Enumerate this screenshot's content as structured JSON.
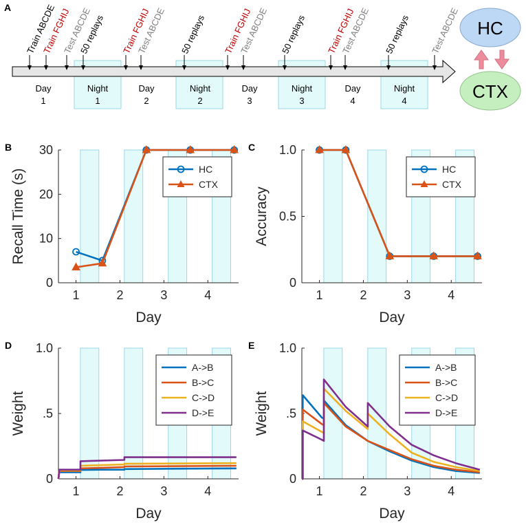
{
  "panel_a": {
    "letter": "A",
    "events": [
      {
        "text": "Train ABCDE",
        "kind": "train"
      },
      {
        "text": "Train FGHIJ",
        "kind": "new"
      },
      {
        "text": "Test ABCDE",
        "kind": "test"
      },
      {
        "text": "50 replays",
        "kind": "replay"
      },
      {
        "text": "Train FGHIJ",
        "kind": "new"
      },
      {
        "text": "Test ABCDE",
        "kind": "test"
      },
      {
        "text": "50 replays",
        "kind": "replay"
      },
      {
        "text": "Train FGHIJ",
        "kind": "new"
      },
      {
        "text": "Test ABCDE",
        "kind": "test"
      },
      {
        "text": "50 replays",
        "kind": "replay"
      },
      {
        "text": "Train FGHIJ",
        "kind": "new"
      },
      {
        "text": "Test ABCDE",
        "kind": "test"
      },
      {
        "text": "50 replays",
        "kind": "replay"
      },
      {
        "text": "Test ABCDE",
        "kind": "test"
      }
    ],
    "periods": [
      {
        "label": "Day",
        "num": "1",
        "night": false
      },
      {
        "label": "Night",
        "num": "1",
        "night": true
      },
      {
        "label": "Day",
        "num": "2",
        "night": false
      },
      {
        "label": "Night",
        "num": "2",
        "night": true
      },
      {
        "label": "Day",
        "num": "3",
        "night": false
      },
      {
        "label": "Night",
        "num": "3",
        "night": true
      },
      {
        "label": "Day",
        "num": "4",
        "night": false
      },
      {
        "label": "Night",
        "num": "4",
        "night": true
      }
    ],
    "hc_label": "HC",
    "ctx_label": "CTX"
  },
  "colors": {
    "blue": "#0072bd",
    "orange": "#d95319",
    "yellow": "#edb120",
    "purple": "#7e2f8e",
    "red_text": "#c00000",
    "gray_text": "#808080",
    "night_fill": "#e3fafa",
    "night_stroke": "#9ad8e8",
    "hc_fill": "#bcd8f5",
    "ctx_fill": "#c6efc0",
    "arrow_pink": "#ec8c9c"
  },
  "chart_data": [
    {
      "id": "B",
      "letter": "B",
      "type": "line",
      "xlabel": "Day",
      "ylabel": "Recall Time (s)",
      "xlim": [
        0.6,
        4.7
      ],
      "ylim": [
        0,
        30
      ],
      "xticks": [
        1,
        2,
        3,
        4
      ],
      "yticks": [
        0,
        10,
        20,
        30
      ],
      "ytick_labels": [
        "0",
        "10",
        "20",
        "30"
      ],
      "legend": "top-right",
      "series": [
        {
          "name": "HC",
          "marker": "circle",
          "x": [
            1,
            1.6,
            2.6,
            3.6,
            4.6
          ],
          "y": [
            7,
            5,
            30,
            30,
            30
          ]
        },
        {
          "name": "CTX",
          "marker": "triangle",
          "x": [
            1,
            1.6,
            2.6,
            3.6,
            4.6
          ],
          "y": [
            3.5,
            4.4,
            30,
            30,
            30
          ]
        }
      ]
    },
    {
      "id": "C",
      "letter": "C",
      "type": "line",
      "xlabel": "Day",
      "ylabel": "Accuracy",
      "xlim": [
        0.6,
        4.7
      ],
      "ylim": [
        0,
        1
      ],
      "xticks": [
        1,
        2,
        3,
        4
      ],
      "yticks": [
        0,
        0.5,
        1
      ],
      "ytick_labels": [
        "0",
        "0.5",
        "1.0"
      ],
      "legend": "top-right",
      "series": [
        {
          "name": "HC",
          "marker": "circle",
          "x": [
            1,
            1.6,
            2.6,
            3.6,
            4.6
          ],
          "y": [
            1,
            1,
            0.2,
            0.2,
            0.2
          ]
        },
        {
          "name": "CTX",
          "marker": "triangle",
          "x": [
            1,
            1.6,
            2.6,
            3.6,
            4.6
          ],
          "y": [
            1,
            1,
            0.2,
            0.2,
            0.2
          ]
        }
      ]
    },
    {
      "id": "D",
      "letter": "D",
      "type": "line",
      "xlabel": "Day",
      "ylabel": "Weight",
      "xlim": [
        0.6,
        4.7
      ],
      "ylim": [
        0,
        1
      ],
      "xticks": [
        1,
        2,
        3,
        4
      ],
      "yticks": [
        0,
        0.5,
        1
      ],
      "ytick_labels": [
        "0",
        ".5",
        "1.0"
      ],
      "legend": "top-right",
      "series": [
        {
          "name": "A->B",
          "x": [
            0.6,
            0.62,
            1.1,
            1.1,
            1.6,
            2.1,
            2.1,
            4.65
          ],
          "y": [
            0,
            0.05,
            0.05,
            0.068,
            0.07,
            0.07,
            0.075,
            0.08
          ]
        },
        {
          "name": "B->C",
          "x": [
            0.6,
            0.62,
            1.1,
            1.1,
            1.6,
            2.1,
            2.1,
            4.65
          ],
          "y": [
            0,
            0.06,
            0.06,
            0.08,
            0.085,
            0.09,
            0.095,
            0.1
          ]
        },
        {
          "name": "C->D",
          "x": [
            0.6,
            0.62,
            1.1,
            1.1,
            1.6,
            2.1,
            2.1,
            4.65
          ],
          "y": [
            0,
            0.065,
            0.065,
            0.1,
            0.105,
            0.11,
            0.115,
            0.12
          ]
        },
        {
          "name": "D->E",
          "x": [
            0.6,
            0.62,
            1.1,
            1.1,
            1.6,
            2.1,
            2.1,
            4.65
          ],
          "y": [
            0,
            0.07,
            0.07,
            0.135,
            0.14,
            0.145,
            0.165,
            0.165
          ]
        }
      ]
    },
    {
      "id": "E",
      "letter": "E",
      "type": "line",
      "xlabel": "Day",
      "ylabel": "Weight",
      "xlim": [
        0.6,
        4.7
      ],
      "ylim": [
        0,
        1
      ],
      "xticks": [
        1,
        2,
        3,
        4
      ],
      "yticks": [
        0,
        0.5,
        1
      ],
      "ytick_labels": [
        "0",
        ".5",
        "1.0"
      ],
      "legend": "top-right",
      "series": [
        {
          "name": "A->B",
          "x": [
            0.6,
            0.62,
            0.62,
            1.05,
            1.1,
            1.1,
            1.6,
            2.1,
            2.1,
            2.6,
            3.1,
            3.6,
            4.1,
            4.65
          ],
          "y": [
            0,
            0,
            0.64,
            0.47,
            0.46,
            0.6,
            0.41,
            0.29,
            0.29,
            0.21,
            0.14,
            0.09,
            0.06,
            0.045
          ]
        },
        {
          "name": "B->C",
          "x": [
            0.6,
            0.62,
            0.62,
            1.05,
            1.1,
            1.1,
            1.6,
            2.1,
            2.1,
            2.6,
            3.1,
            3.6,
            4.1,
            4.65
          ],
          "y": [
            0,
            0,
            0.53,
            0.42,
            0.41,
            0.58,
            0.4,
            0.29,
            0.29,
            0.22,
            0.15,
            0.1,
            0.07,
            0.05
          ]
        },
        {
          "name": "C->D",
          "x": [
            0.6,
            0.62,
            0.62,
            1.05,
            1.1,
            1.1,
            1.6,
            2.1,
            2.1,
            2.6,
            3.1,
            3.6,
            4.1,
            4.65
          ],
          "y": [
            0,
            0,
            0.44,
            0.36,
            0.35,
            0.69,
            0.52,
            0.38,
            0.5,
            0.34,
            0.2,
            0.13,
            0.09,
            0.06
          ]
        },
        {
          "name": "D->E",
          "x": [
            0.6,
            0.62,
            0.62,
            1.05,
            1.1,
            1.1,
            1.6,
            2.1,
            2.1,
            2.6,
            3.1,
            3.6,
            4.1,
            4.65
          ],
          "y": [
            0,
            0,
            0.37,
            0.3,
            0.29,
            0.76,
            0.55,
            0.4,
            0.58,
            0.4,
            0.26,
            0.18,
            0.12,
            0.07
          ]
        }
      ]
    }
  ]
}
